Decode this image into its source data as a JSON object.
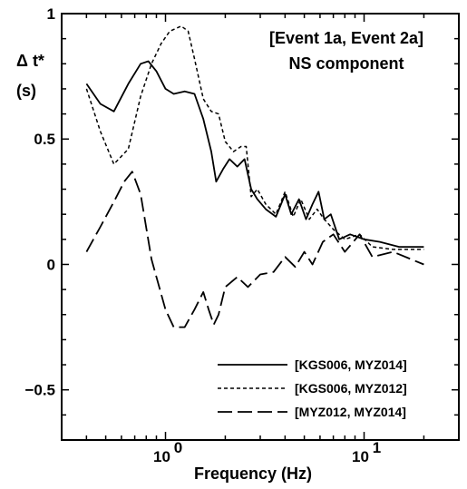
{
  "chart_data": {
    "type": "line",
    "annotation": [
      "[Event 1a, Event 2a]",
      "NS component"
    ],
    "xlabel": "Frequency (Hz)",
    "ylabel_lines": [
      "Δ t*",
      "(s)"
    ],
    "x_scale": "log",
    "xlim": [
      0.3,
      30
    ],
    "ylim": [
      -0.7,
      1.0
    ],
    "x_ticks": [
      {
        "value": 1,
        "label": "10",
        "exp": "0"
      },
      {
        "value": 10,
        "label": "10",
        "exp": "1"
      }
    ],
    "y_ticks": [
      {
        "value": -0.5,
        "label": "−0.5"
      },
      {
        "value": 0,
        "label": "0"
      },
      {
        "value": 0.5,
        "label": "0.5"
      },
      {
        "value": 1.0,
        "label": "1"
      }
    ],
    "grid": false,
    "legend_position": "bottom-right",
    "series": [
      {
        "name": "[KGS006, MYZ014]",
        "style": "solid",
        "x": [
          0.4,
          0.47,
          0.55,
          0.65,
          0.75,
          0.82,
          0.9,
          1.0,
          1.1,
          1.25,
          1.4,
          1.55,
          1.7,
          1.8,
          1.95,
          2.1,
          2.3,
          2.5,
          2.7,
          2.9,
          3.2,
          3.6,
          4.0,
          4.3,
          4.7,
          5.1,
          5.5,
          5.9,
          6.3,
          6.8,
          7.5,
          8.5,
          10,
          12,
          15,
          20
        ],
        "y": [
          0.72,
          0.64,
          0.61,
          0.72,
          0.8,
          0.81,
          0.77,
          0.7,
          0.68,
          0.69,
          0.68,
          0.58,
          0.45,
          0.33,
          0.38,
          0.42,
          0.39,
          0.42,
          0.3,
          0.26,
          0.22,
          0.19,
          0.28,
          0.2,
          0.26,
          0.18,
          0.24,
          0.29,
          0.18,
          0.2,
          0.1,
          0.12,
          0.1,
          0.09,
          0.07,
          0.07
        ]
      },
      {
        "name": "[KGS006, MYZ012]",
        "style": "dashed",
        "x": [
          0.4,
          0.47,
          0.55,
          0.65,
          0.75,
          0.85,
          0.95,
          1.05,
          1.2,
          1.3,
          1.4,
          1.55,
          1.7,
          1.85,
          2.0,
          2.2,
          2.4,
          2.55,
          2.7,
          2.9,
          3.2,
          3.6,
          4.0,
          4.4,
          4.8,
          5.3,
          5.8,
          6.3,
          7.0,
          8.0,
          9.5,
          11,
          14,
          20
        ],
        "y": [
          0.7,
          0.53,
          0.4,
          0.46,
          0.67,
          0.8,
          0.88,
          0.93,
          0.95,
          0.93,
          0.82,
          0.66,
          0.61,
          0.6,
          0.49,
          0.45,
          0.47,
          0.47,
          0.27,
          0.3,
          0.24,
          0.2,
          0.29,
          0.19,
          0.26,
          0.18,
          0.22,
          0.18,
          0.14,
          0.1,
          0.12,
          0.07,
          0.06,
          0.06
        ]
      },
      {
        "name": "[MYZ012, MYZ014]",
        "style": "long-dash",
        "x": [
          0.4,
          0.47,
          0.55,
          0.62,
          0.68,
          0.75,
          0.85,
          1.0,
          1.1,
          1.25,
          1.4,
          1.55,
          1.65,
          1.75,
          1.85,
          2.0,
          2.3,
          2.6,
          3.0,
          3.5,
          4.0,
          4.5,
          5.0,
          5.5,
          6.2,
          7.0,
          8.0,
          9.5,
          11,
          14,
          20
        ],
        "y": [
          0.05,
          0.15,
          0.25,
          0.33,
          0.37,
          0.28,
          0.02,
          -0.18,
          -0.25,
          -0.25,
          -0.18,
          -0.11,
          -0.18,
          -0.24,
          -0.2,
          -0.09,
          -0.05,
          -0.09,
          -0.04,
          -0.03,
          0.03,
          -0.01,
          0.05,
          0.0,
          0.09,
          0.12,
          0.05,
          0.12,
          0.03,
          0.05,
          0.0
        ]
      }
    ]
  }
}
